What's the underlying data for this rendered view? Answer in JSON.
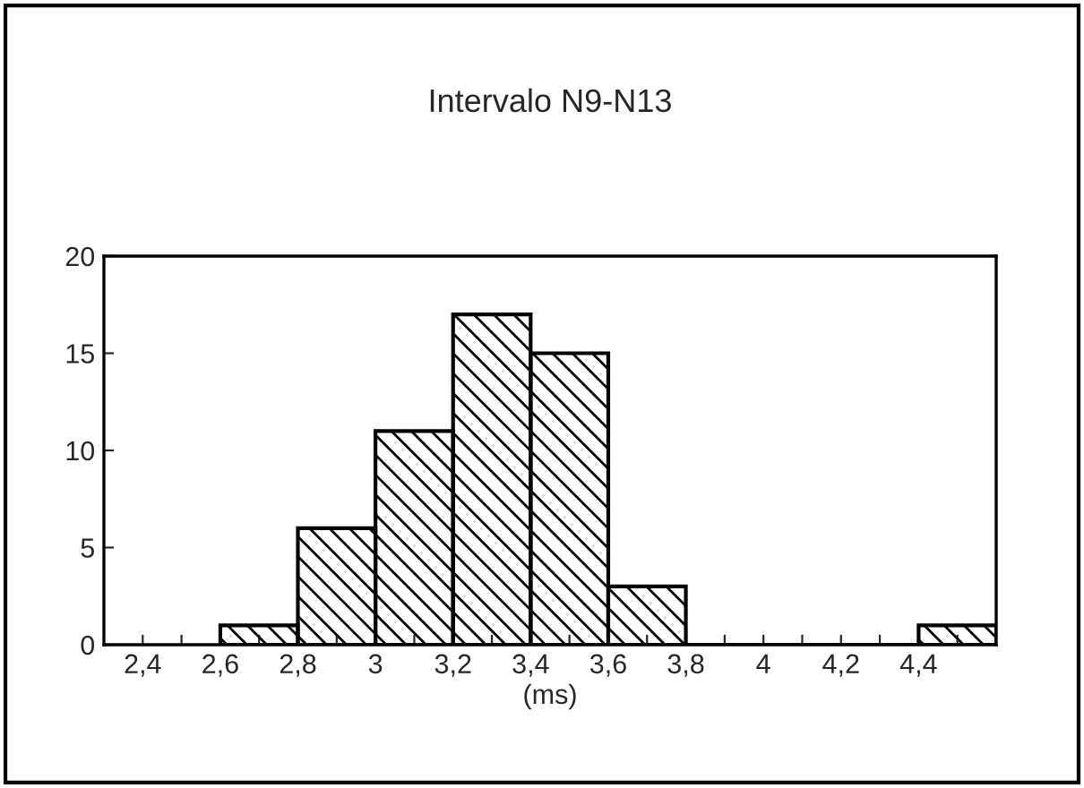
{
  "chart_data": {
    "type": "histogram",
    "title": "Intervalo N9-N13",
    "xlabel": "(ms)",
    "bins": [
      2.6,
      2.8,
      3.0,
      3.2,
      3.4,
      3.6,
      3.8,
      4.0,
      4.2,
      4.4,
      4.6
    ],
    "values": [
      1,
      6,
      11,
      17,
      15,
      3,
      0,
      0,
      0,
      1
    ],
    "color": "#000000",
    "xlim": [
      2.3,
      4.6
    ],
    "ylim": [
      0,
      20
    ],
    "xticks": [
      {
        "value": 2.4,
        "label": "2,4"
      },
      {
        "value": 2.6,
        "label": "2,6"
      },
      {
        "value": 2.8,
        "label": "2,8"
      },
      {
        "value": 3,
        "label": "3"
      },
      {
        "value": 3.2,
        "label": "3,2"
      },
      {
        "value": 3.4,
        "label": "3,4"
      },
      {
        "value": 3.6,
        "label": "3,6"
      },
      {
        "value": 3.8,
        "label": "3,8"
      },
      {
        "value": 4,
        "label": "4"
      },
      {
        "value": 4.2,
        "label": "4,2"
      },
      {
        "value": 4.4,
        "label": "4,4"
      },
      {
        "value": 2.5,
        "label": null
      },
      {
        "value": 2.7,
        "label": null
      },
      {
        "value": 2.9,
        "label": null
      },
      {
        "value": 3.1,
        "label": null
      },
      {
        "value": 3.3,
        "label": null
      },
      {
        "value": 3.5,
        "label": null
      },
      {
        "value": 3.7,
        "label": null
      },
      {
        "value": 3.9,
        "label": null
      },
      {
        "value": 4.1,
        "label": null
      },
      {
        "value": 4.3,
        "label": null
      },
      {
        "value": 4.5,
        "label": null
      }
    ],
    "yticks": [
      0,
      5,
      10,
      15,
      20
    ],
    "grid": false,
    "legend": false
  }
}
